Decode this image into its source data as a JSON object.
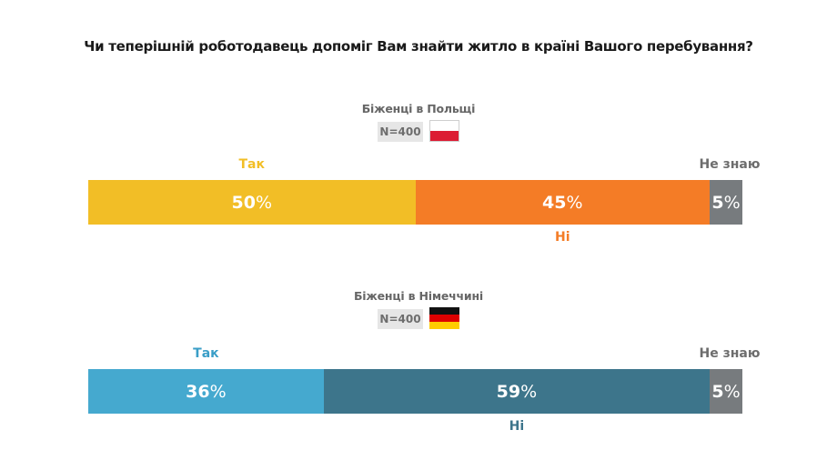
{
  "chart_data": {
    "type": "bar",
    "orientation": "horizontal-stacked",
    "title": "Чи теперішній роботодавець допоміг Вам знайти житло в країні Вашого перебування?",
    "categories": [
      "Так",
      "Ні",
      "Не знаю"
    ],
    "percent_suffix": "%",
    "groups": [
      {
        "name": "Біженці в Польщі",
        "n_label": "N=400",
        "flag": "poland-flag",
        "series": [
          {
            "name": "Так",
            "value": 50,
            "color": "#f2be26",
            "label_color": "#f2be26",
            "label_position": "top"
          },
          {
            "name": "Ні",
            "value": 45,
            "color": "#f47c26",
            "label_color": "#f47c26",
            "label_position": "bottom"
          },
          {
            "name": "Не знаю",
            "value": 5,
            "color": "#777b7e",
            "label_color": "#6d6d6d",
            "label_position": "top-right"
          }
        ]
      },
      {
        "name": "Біженці в Німеччині",
        "n_label": "N=400",
        "flag": "germany-flag",
        "series": [
          {
            "name": "Так",
            "value": 36,
            "color": "#45a9cf",
            "label_color": "#3a9ec7",
            "label_position": "top"
          },
          {
            "name": "Ні",
            "value": 59,
            "color": "#3d758b",
            "label_color": "#3d758b",
            "label_position": "bottom"
          },
          {
            "name": "Не знаю",
            "value": 5,
            "color": "#777b7e",
            "label_color": "#6d6d6d",
            "label_position": "top-right"
          }
        ]
      }
    ],
    "xlim": [
      0,
      100
    ],
    "grid": false,
    "legend": "inline"
  }
}
